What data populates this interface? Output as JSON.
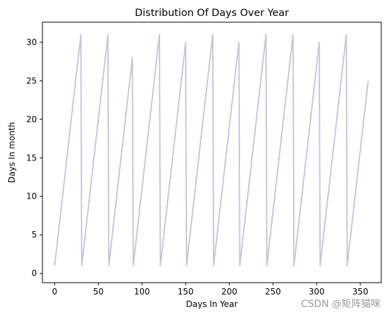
{
  "chart_data": {
    "type": "line",
    "title": "Distribution Of Days Over Year",
    "xlabel": "Days In Year",
    "ylabel": "Days In month",
    "xlim": [
      -14,
      374
    ],
    "ylim": [
      -1.2,
      32.6
    ],
    "xticks": [
      0,
      50,
      100,
      150,
      200,
      250,
      300,
      350
    ],
    "yticks": [
      0,
      5,
      10,
      15,
      20,
      25,
      30
    ],
    "grid": false,
    "series": [
      {
        "color": "#c1c3df",
        "x": [
          0,
          30,
          31,
          61,
          62,
          89,
          90,
          120,
          121,
          150,
          151,
          181,
          182,
          211,
          212,
          242,
          243,
          273,
          274,
          303,
          304,
          334,
          335,
          359
        ],
        "values": [
          1,
          31,
          1,
          31,
          1,
          28,
          1,
          31,
          1,
          30,
          1,
          31,
          1,
          30,
          1,
          31,
          1,
          31,
          1,
          30,
          1,
          31,
          1,
          25
        ]
      }
    ]
  },
  "watermark": "CSDN @矩阵猫咪"
}
